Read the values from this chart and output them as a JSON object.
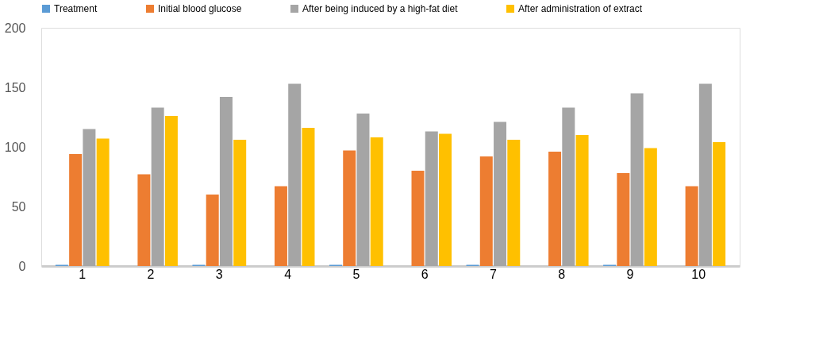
{
  "chart_data": {
    "type": "bar",
    "categories": [
      "1",
      "2",
      "3",
      "4",
      "5",
      "6",
      "7",
      "8",
      "9",
      "10"
    ],
    "series": [
      {
        "name": "Treatment",
        "color": "#5b9bd5",
        "values": [
          1,
          null,
          1,
          null,
          1,
          null,
          1,
          null,
          1,
          null
        ]
      },
      {
        "name": "Initial blood glucose",
        "color": "#ed7d31",
        "values": [
          94,
          77,
          60,
          67,
          97,
          80,
          92,
          96,
          78,
          67
        ]
      },
      {
        "name": "After being induced by a high-fat diet",
        "color": "#a5a5a5",
        "values": [
          115,
          133,
          142,
          153,
          128,
          113,
          121,
          133,
          145,
          153
        ]
      },
      {
        "name": "After administration of extract",
        "color": "#ffc000",
        "values": [
          107,
          126,
          106,
          116,
          108,
          111,
          106,
          110,
          99,
          104
        ]
      }
    ],
    "ylim": [
      0,
      200
    ],
    "yticks": [
      0,
      50,
      100,
      150,
      200
    ],
    "grid": false,
    "legend": "top"
  }
}
